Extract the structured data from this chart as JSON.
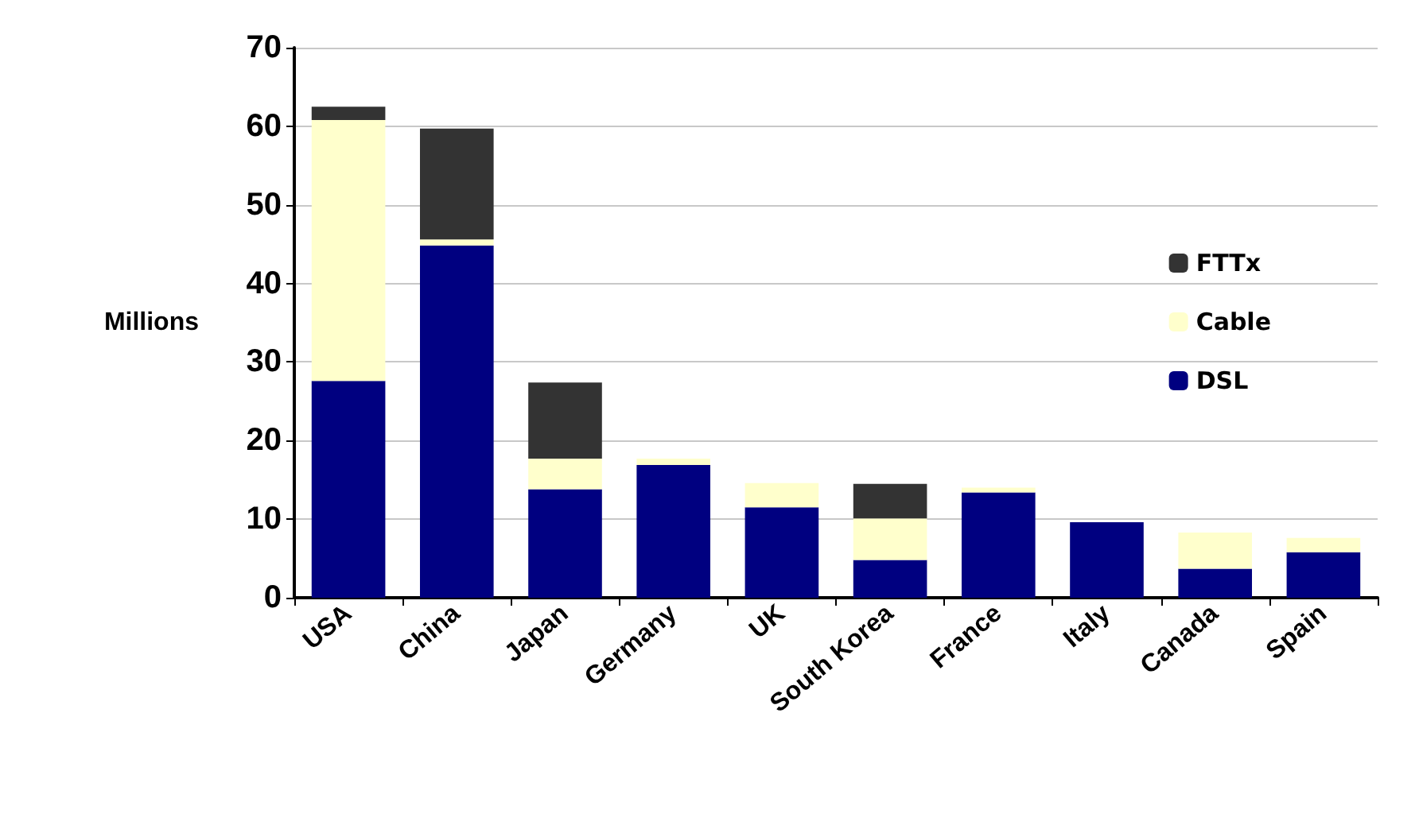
{
  "chart_data": {
    "type": "bar",
    "stacked": true,
    "ylabel": "Millions",
    "categories": [
      "USA",
      "China",
      "Japan",
      "Germany",
      "UK",
      "South Korea",
      "France",
      "Italy",
      "Canada",
      "Spain"
    ],
    "series": [
      {
        "name": "DSL",
        "color": "#000080",
        "values": [
          27.6,
          44.8,
          13.8,
          16.9,
          11.5,
          4.8,
          13.4,
          9.6,
          3.7,
          5.8
        ]
      },
      {
        "name": "Cable",
        "color": "#ffffcc",
        "values": [
          33.2,
          0.8,
          3.9,
          0.8,
          3.1,
          5.3,
          0.6,
          0,
          4.6,
          1.8
        ]
      },
      {
        "name": "FTTx",
        "color": "#333333",
        "values": [
          1.7,
          14.1,
          9.7,
          0,
          0,
          4.4,
          0,
          0,
          0,
          0
        ]
      }
    ],
    "ylim": [
      0,
      70
    ],
    "yticks": [
      0,
      10,
      20,
      30,
      40,
      50,
      60,
      70
    ],
    "grid": "y",
    "legend": "top right"
  }
}
